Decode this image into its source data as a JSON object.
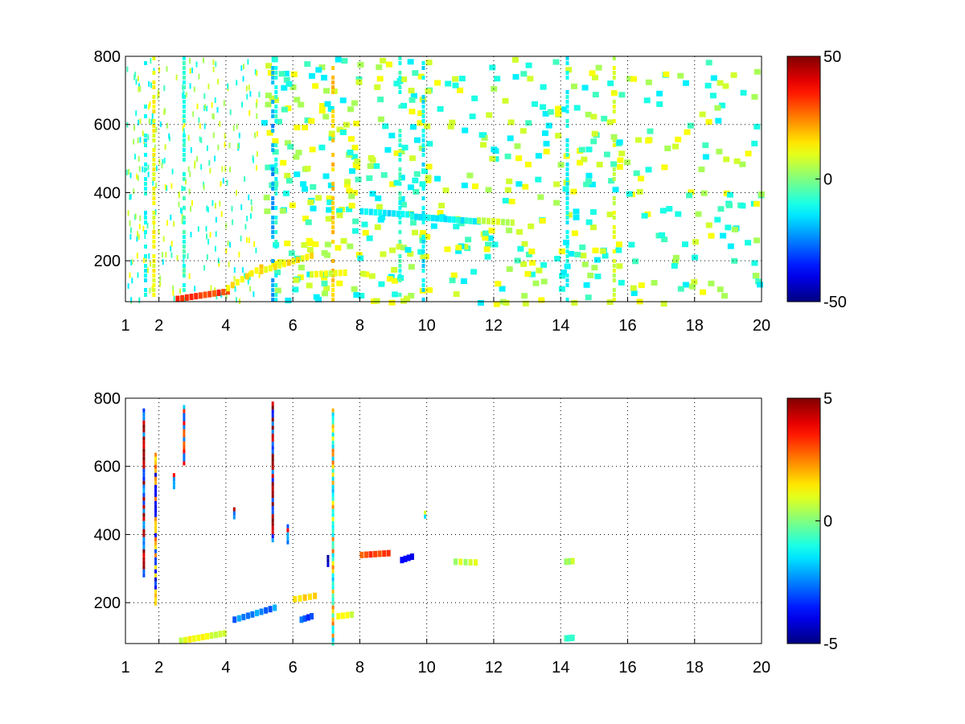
{
  "chart_data": [
    {
      "type": "heatmap",
      "title": "",
      "xlabel": "",
      "ylabel": "",
      "xlim": [
        1,
        20
      ],
      "ylim": [
        80,
        800
      ],
      "grid": true,
      "xticks": [
        1,
        2,
        4,
        6,
        8,
        10,
        12,
        14,
        16,
        18,
        20
      ],
      "xtick_labels": [
        "1",
        "2",
        "4",
        "6",
        "8",
        "10",
        "12",
        "14",
        "16",
        "18",
        "20"
      ],
      "yticks": [
        200,
        400,
        600,
        800
      ],
      "ytick_labels": [
        "200",
        "400",
        "600",
        "800"
      ],
      "colorbar": {
        "colormap": "jet",
        "min": -50,
        "max": 50,
        "ticks": [
          -50,
          0,
          50
        ],
        "tick_labels": [
          "-50",
          "0",
          "50"
        ]
      },
      "features": [
        {
          "kind": "vline",
          "x": 1.6,
          "y": [
            80,
            800
          ],
          "value": -12
        },
        {
          "kind": "vline",
          "x": 1.85,
          "y": [
            80,
            800
          ],
          "value": 12
        },
        {
          "kind": "vline",
          "x": 2.75,
          "y": [
            80,
            800
          ],
          "value": -8
        },
        {
          "kind": "vline",
          "x": 5.4,
          "y": [
            80,
            800
          ],
          "value": -22
        },
        {
          "kind": "vline",
          "x": 5.5,
          "y": [
            80,
            800
          ],
          "value": -10
        },
        {
          "kind": "vline",
          "x": 7.2,
          "y": [
            80,
            800
          ],
          "value": 18
        },
        {
          "kind": "vline",
          "x": 9.2,
          "y": [
            80,
            800
          ],
          "value": -8
        },
        {
          "kind": "vline",
          "x": 9.9,
          "y": [
            80,
            800
          ],
          "value": -14
        },
        {
          "kind": "vline",
          "x": 14.2,
          "y": [
            80,
            800
          ],
          "value": -12
        },
        {
          "kind": "vline",
          "x": 15.6,
          "y": [
            80,
            800
          ],
          "value": 8
        },
        {
          "kind": "segment",
          "x": [
            2.5,
            4.0
          ],
          "y": [
            88,
            110
          ],
          "value": 32
        },
        {
          "kind": "segment",
          "x": [
            4.0,
            5.0
          ],
          "y": [
            120,
            180
          ],
          "value": 15
        },
        {
          "kind": "segment",
          "x": [
            5.0,
            6.5
          ],
          "y": [
            170,
            215
          ],
          "value": 14
        },
        {
          "kind": "segment",
          "x": [
            6.5,
            7.5
          ],
          "y": [
            160,
            165
          ],
          "value": 10
        },
        {
          "kind": "segment",
          "x": [
            8.0,
            9.5
          ],
          "y": [
            345,
            335
          ],
          "value": -14
        },
        {
          "kind": "segment",
          "x": [
            9.5,
            11.5
          ],
          "y": [
            330,
            315
          ],
          "value": -12
        },
        {
          "kind": "segment",
          "x": [
            11.5,
            12.5
          ],
          "y": [
            318,
            312
          ],
          "value": 6
        }
      ]
    },
    {
      "type": "heatmap",
      "title": "",
      "xlabel": "",
      "ylabel": "",
      "xlim": [
        1,
        20
      ],
      "ylim": [
        80,
        800
      ],
      "grid": true,
      "xticks": [
        1,
        2,
        4,
        6,
        8,
        10,
        12,
        14,
        16,
        18,
        20
      ],
      "xtick_labels": [
        "1",
        "2",
        "4",
        "6",
        "8",
        "10",
        "12",
        "14",
        "16",
        "18",
        "20"
      ],
      "yticks": [
        200,
        400,
        600,
        800
      ],
      "ytick_labels": [
        "200",
        "400",
        "600",
        "800"
      ],
      "colorbar": {
        "colormap": "jet",
        "min": -5,
        "max": 5,
        "ticks": [
          -5,
          0,
          5
        ],
        "tick_labels": [
          "-5",
          "0",
          "5"
        ]
      },
      "features": [
        {
          "kind": "vline",
          "x": 1.55,
          "y": [
            280,
            770
          ],
          "value": 4.5
        },
        {
          "kind": "vline",
          "x": 1.9,
          "y": [
            200,
            640
          ],
          "value": -3.5
        },
        {
          "kind": "vline",
          "x": 2.75,
          "y": [
            610,
            780
          ],
          "value": 3.5
        },
        {
          "kind": "vline",
          "x": 5.4,
          "y": [
            380,
            790
          ],
          "value": 4.8
        },
        {
          "kind": "vline",
          "x": 5.85,
          "y": [
            380,
            430
          ],
          "value": 4
        },
        {
          "kind": "vline",
          "x": 4.25,
          "y": [
            450,
            480
          ],
          "value": 4.5
        },
        {
          "kind": "vline",
          "x": 7.2,
          "y": [
            80,
            770
          ],
          "value": 2
        },
        {
          "kind": "vline",
          "x": 7.05,
          "y": [
            310,
            340
          ],
          "value": -4
        },
        {
          "kind": "vline",
          "x": 2.45,
          "y": [
            540,
            580
          ],
          "value": 3.5
        },
        {
          "kind": "vline",
          "x": 9.95,
          "y": [
            450,
            470
          ],
          "value": -1.5
        },
        {
          "kind": "segment",
          "x": [
            2.6,
            3.9
          ],
          "y": [
            88,
            110
          ],
          "value": 1
        },
        {
          "kind": "segment",
          "x": [
            4.2,
            5.4
          ],
          "y": [
            150,
            185
          ],
          "value": -2.5
        },
        {
          "kind": "segment",
          "x": [
            6.0,
            6.6
          ],
          "y": [
            210,
            220
          ],
          "value": 1.5
        },
        {
          "kind": "segment",
          "x": [
            6.2,
            6.5
          ],
          "y": [
            150,
            160
          ],
          "value": -3
        },
        {
          "kind": "segment",
          "x": [
            7.3,
            7.7
          ],
          "y": [
            160,
            165
          ],
          "value": 0.8
        },
        {
          "kind": "segment",
          "x": [
            8.0,
            8.8
          ],
          "y": [
            340,
            345
          ],
          "value": 3
        },
        {
          "kind": "segment",
          "x": [
            9.2,
            9.5
          ],
          "y": [
            325,
            335
          ],
          "value": -4
        },
        {
          "kind": "segment",
          "x": [
            10.8,
            11.4
          ],
          "y": [
            320,
            318
          ],
          "value": 0.6
        },
        {
          "kind": "segment",
          "x": [
            14.1,
            14.3
          ],
          "y": [
            320,
            322
          ],
          "value": 0.5
        },
        {
          "kind": "segment",
          "x": [
            14.1,
            14.3
          ],
          "y": [
            95,
            97
          ],
          "value": -0.5
        }
      ]
    }
  ]
}
